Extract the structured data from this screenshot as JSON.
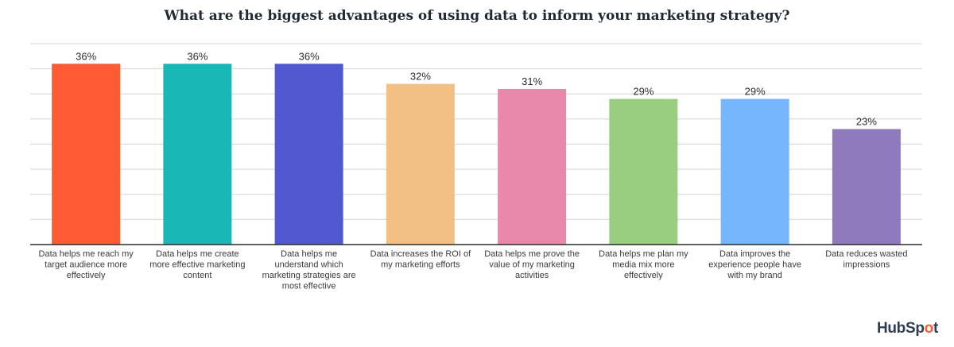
{
  "chart_data": {
    "type": "bar",
    "title": "What are the biggest advantages of using data to inform your marketing strategy?",
    "categories": [
      "Data helps me reach my target audience more effectively",
      "Data helps me create more effective marketing content",
      "Data helps me understand which marketing strategies are most effective",
      "Data increases the ROI of my marketing efforts",
      "Data helps me prove the value of my marketing activities",
      "Data helps me plan my media mix more effectively",
      "Data improves the experience people have with my brand",
      "Data reduces wasted impressions"
    ],
    "category_lines": [
      [
        "Data helps me reach my",
        "target audience more",
        "effectively"
      ],
      [
        "Data helps me create",
        "more effective marketing",
        "content"
      ],
      [
        "Data helps me",
        "understand which",
        "marketing strategies are",
        "most effective"
      ],
      [
        "Data increases the ROI of",
        "my marketing efforts"
      ],
      [
        "Data helps me prove the",
        "value of my marketing",
        "activities"
      ],
      [
        "Data helps me plan my",
        "media mix more",
        "effectively"
      ],
      [
        "Data improves the",
        "experience people have",
        "with my brand"
      ],
      [
        "Data reduces wasted",
        "impressions"
      ]
    ],
    "values": [
      36,
      36,
      36,
      32,
      31,
      29,
      29,
      23
    ],
    "value_labels": [
      "36%",
      "36%",
      "36%",
      "32%",
      "31%",
      "29%",
      "29%",
      "23%"
    ],
    "colors": [
      "#ff5c35",
      "#19b8b7",
      "#5258d0",
      "#f2c085",
      "#e888aa",
      "#99cd80",
      "#75b6fc",
      "#8f7abe"
    ],
    "ylim": [
      0,
      40
    ],
    "grid": true,
    "xlabel": "",
    "ylabel": ""
  },
  "brand": {
    "logo_text_pre": "HubSp",
    "logo_mark": "o",
    "logo_text_post": "t",
    "logo_color": "#2d3e50",
    "logo_accent": "#ff5c35"
  }
}
